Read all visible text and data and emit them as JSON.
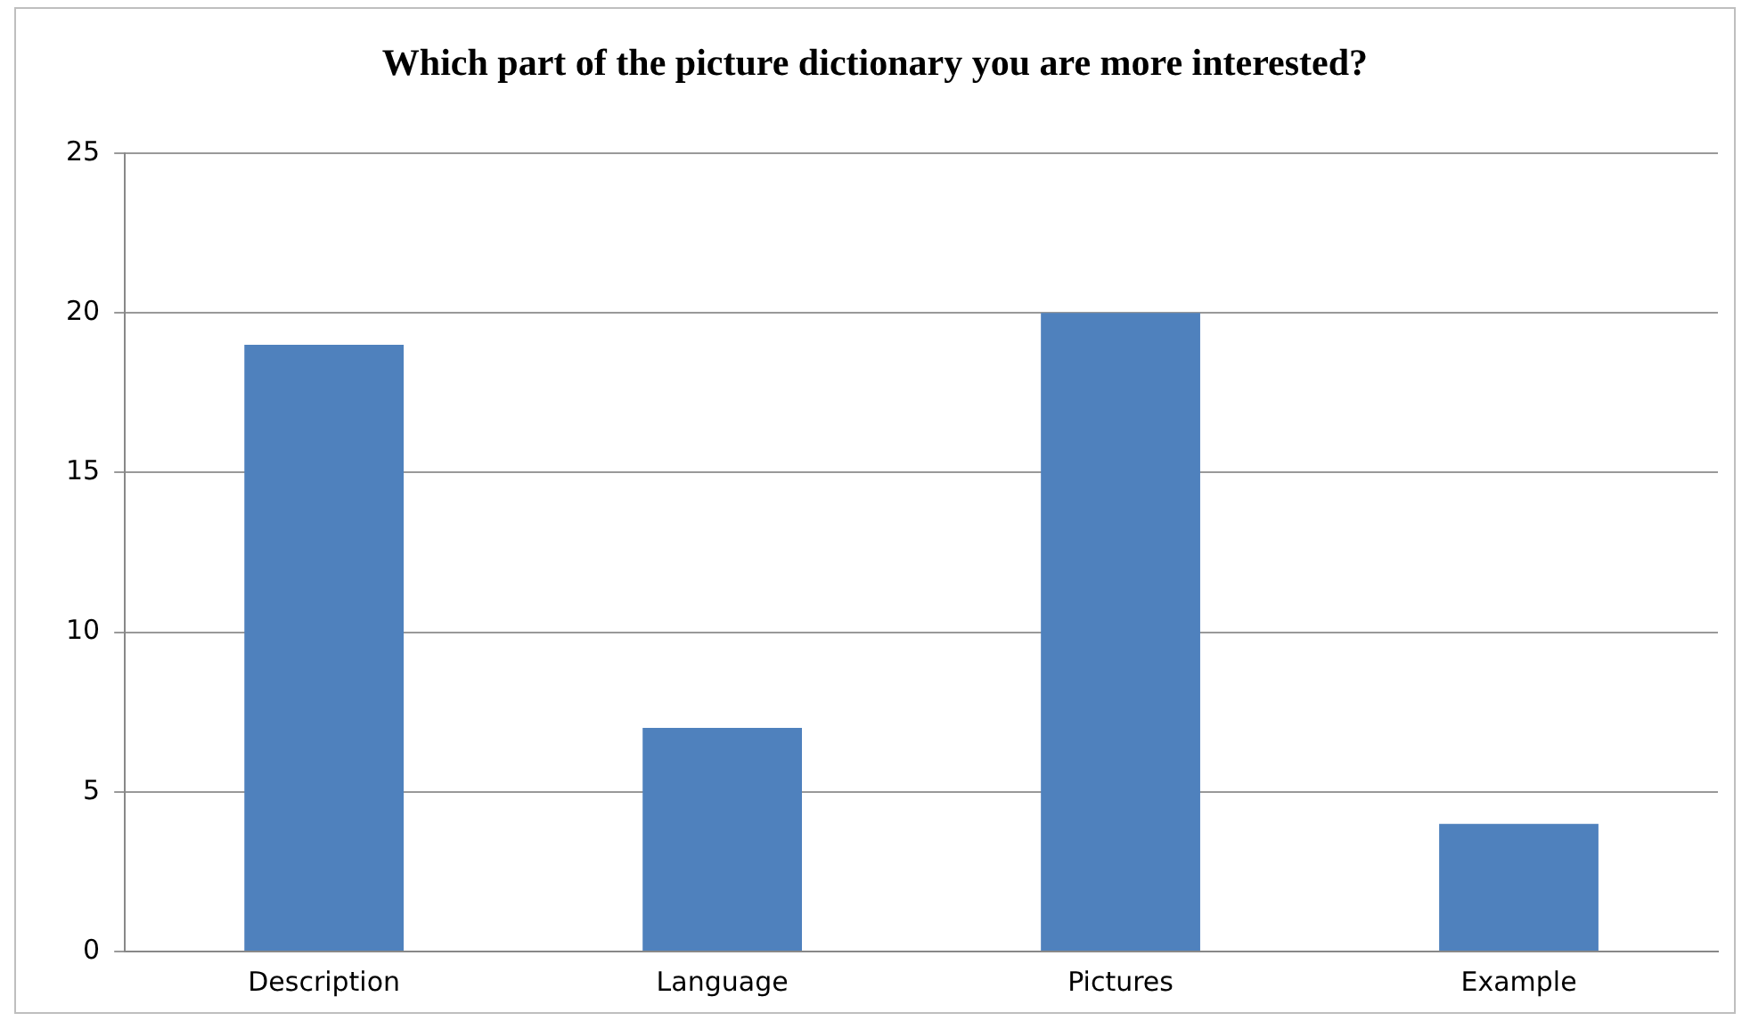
{
  "chart_data": {
    "type": "bar",
    "title": "Which part of the picture dictionary you are more interested?",
    "categories": [
      "Description",
      "Language",
      "Pictures",
      "Example"
    ],
    "values": [
      19,
      7,
      20,
      4
    ],
    "color": "#4f81bd",
    "ylim": [
      0,
      25
    ],
    "yticks": [
      0,
      5,
      10,
      15,
      20,
      25
    ],
    "grid": "y",
    "legend": false
  }
}
